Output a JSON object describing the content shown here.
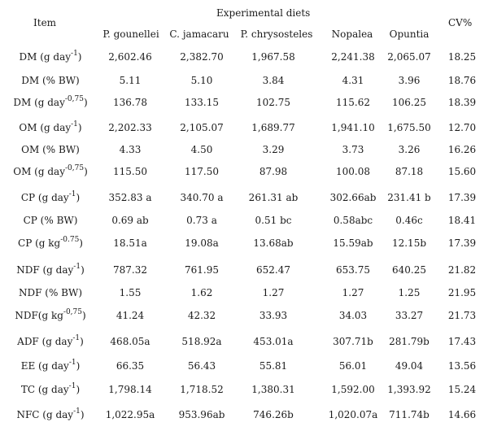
{
  "table": {
    "item_header": "Item",
    "group_header": "Experimental diets",
    "cv_header": "CV%",
    "columns": [
      "P. gounellei",
      "C. jamacaru",
      "P. chrysosteles",
      "Nopalea",
      "Opuntia"
    ],
    "rows": [
      {
        "base": "DM (g day",
        "sup": "-1",
        "tail": ")",
        "values": [
          "2,602.46",
          "2,382.70",
          "1,967.58",
          "2,241.38",
          "2,065.07"
        ],
        "cv": "18.25"
      },
      {
        "base": "DM (% BW)",
        "sup": "",
        "tail": "",
        "values": [
          "5.11",
          "5.10",
          "3.84",
          "4.31",
          "3.96"
        ],
        "cv": "18.76"
      },
      {
        "base": "DM (g day",
        "sup": "-0,75",
        "tail": ")",
        "values": [
          "136.78",
          "133.15",
          "102.75",
          "115.62",
          "106.25"
        ],
        "cv": "18.39"
      },
      {
        "base": "OM (g day",
        "sup": "-1",
        "tail": ")",
        "values": [
          "2,202.33",
          "2,105.07",
          "1,689.77",
          "1,941.10",
          "1,675.50"
        ],
        "cv": "12.70"
      },
      {
        "base": "OM (% BW)",
        "sup": "",
        "tail": "",
        "values": [
          "4.33",
          "4.50",
          "3.29",
          "3.73",
          "3.26"
        ],
        "cv": "16.26"
      },
      {
        "base": "OM (g day",
        "sup": "-0,75",
        "tail": ")",
        "values": [
          "115.50",
          "117.50",
          "87.98",
          "100.08",
          "87.18"
        ],
        "cv": "15.60"
      },
      {
        "base": "CP (g day",
        "sup": "-1",
        "tail": ")",
        "values": [
          "352.83 a",
          "340.70 a",
          "261.31 ab",
          "302.66ab",
          "231.41 b"
        ],
        "cv": "17.39"
      },
      {
        "base": "CP (% BW)",
        "sup": "",
        "tail": "",
        "values": [
          "0.69 ab",
          "0.73 a",
          "0.51 bc",
          "0.58abc",
          "0.46c"
        ],
        "cv": "18.41"
      },
      {
        "base": "CP (g kg",
        "sup": "-0.75",
        "tail": ")",
        "values": [
          "18.51a",
          "19.08a",
          "13.68ab",
          "15.59ab",
          "12.15b"
        ],
        "cv": "17.39"
      },
      {
        "base": "NDF (g day",
        "sup": "-1",
        "tail": ")",
        "values": [
          "787.32",
          "761.95",
          "652.47",
          "653.75",
          "640.25"
        ],
        "cv": "21.82"
      },
      {
        "base": "NDF (% BW)",
        "sup": "",
        "tail": "",
        "values": [
          "1.55",
          "1.62",
          "1.27",
          "1.27",
          "1.25"
        ],
        "cv": "21.95"
      },
      {
        "base": "NDF(g kg",
        "sup": "-0,75",
        "tail": ")",
        "values": [
          "41.24",
          "42.32",
          "33.93",
          "34.03",
          "33.27"
        ],
        "cv": "21.73"
      },
      {
        "base": "ADF (g day",
        "sup": "-1",
        "tail": ")",
        "values": [
          "468.05a",
          "518.92a",
          "453.01a",
          "307.71b",
          "281.79b"
        ],
        "cv": "17.43"
      },
      {
        "base": "EE (g day",
        "sup": "-1",
        "tail": ")",
        "values": [
          "66.35",
          "56.43",
          "55.81",
          "56.01",
          "49.04"
        ],
        "cv": "13.56"
      },
      {
        "base": "TC (g day",
        "sup": "-1",
        "tail": ")",
        "values": [
          "1,798.14",
          "1,718.52",
          "1,380.31",
          "1,592.00",
          "1,393.92"
        ],
        "cv": "15.24"
      },
      {
        "base": "NFC (g day",
        "sup": "-1",
        "tail": ")",
        "values": [
          "1,022.95a",
          "953.96ab",
          "746.26b",
          "1,020.07a",
          "711.74b"
        ],
        "cv": "14.66"
      }
    ]
  }
}
